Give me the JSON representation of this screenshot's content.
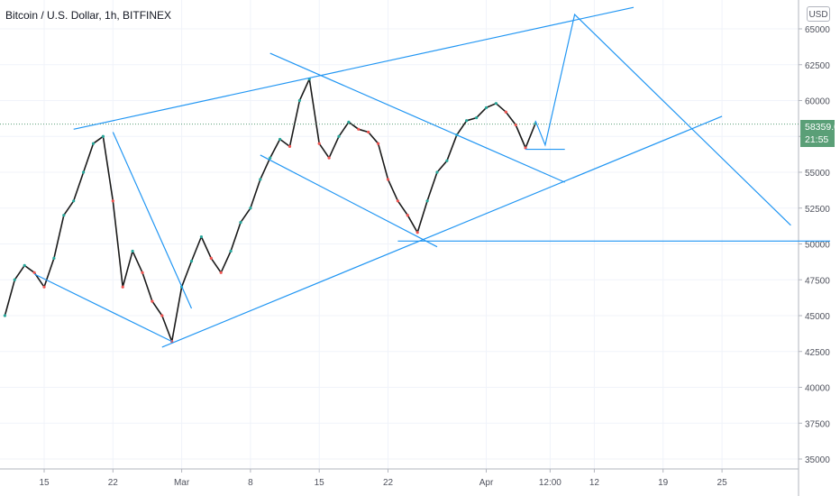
{
  "header": {
    "title": "Bitcoin / U.S. Dollar, 1h, BITFINEX",
    "currency": "USD"
  },
  "colors": {
    "up": "#26a69a",
    "down": "#ef5350",
    "candle": "#1a1a1a",
    "drawing": "#2196f3",
    "grid": "#f0f3fa",
    "price_tag": "#5a9f77"
  },
  "last_price": {
    "value": "58359.0",
    "countdown": "21:55"
  },
  "chart_data": {
    "type": "line",
    "title": "Bitcoin / U.S. Dollar, 1h, BITFINEX",
    "xlabel": "",
    "ylabel": "",
    "ylim": [
      34000,
      66500
    ],
    "y_ticks": [
      35000,
      37500,
      40000,
      42500,
      45000,
      47500,
      50000,
      52500,
      55000,
      57500,
      60000,
      62500,
      65000
    ],
    "y_tick_labels": [
      "35000",
      "37500",
      "40000",
      "42500",
      "45000",
      "47500",
      "50000",
      "52500",
      "55000",
      "57500",
      "60000",
      "62500",
      "65000"
    ],
    "x_ticks": [
      {
        "label": "15",
        "date": "2021-02-15"
      },
      {
        "label": "22",
        "date": "2021-02-22"
      },
      {
        "label": "Mar",
        "date": "2021-03-01"
      },
      {
        "label": "8",
        "date": "2021-03-08"
      },
      {
        "label": "15",
        "date": "2021-03-15"
      },
      {
        "label": "22",
        "date": "2021-03-22"
      },
      {
        "label": "Apr",
        "date": "2021-04-01"
      },
      {
        "label": "12:00",
        "date": "2021-04-07T12:00"
      },
      {
        "label": "12",
        "date": "2021-04-12"
      },
      {
        "label": "19",
        "date": "2021-04-19"
      },
      {
        "label": "25",
        "date": "2021-04-25"
      }
    ],
    "grid": true,
    "price_series": {
      "name": "",
      "x": [
        "2021-02-11",
        "2021-02-12",
        "2021-02-13",
        "2021-02-14",
        "2021-02-15",
        "2021-02-16",
        "2021-02-17",
        "2021-02-18",
        "2021-02-19",
        "2021-02-20",
        "2021-02-21",
        "2021-02-22",
        "2021-02-23",
        "2021-02-24",
        "2021-02-25",
        "2021-02-26",
        "2021-02-27",
        "2021-02-28",
        "2021-03-01",
        "2021-03-02",
        "2021-03-03",
        "2021-03-04",
        "2021-03-05",
        "2021-03-06",
        "2021-03-07",
        "2021-03-08",
        "2021-03-09",
        "2021-03-10",
        "2021-03-11",
        "2021-03-12",
        "2021-03-13",
        "2021-03-14",
        "2021-03-15",
        "2021-03-16",
        "2021-03-17",
        "2021-03-18",
        "2021-03-19",
        "2021-03-20",
        "2021-03-21",
        "2021-03-22",
        "2021-03-23",
        "2021-03-24",
        "2021-03-25",
        "2021-03-26",
        "2021-03-27",
        "2021-03-28",
        "2021-03-29",
        "2021-03-30",
        "2021-03-31",
        "2021-04-01",
        "2021-04-02",
        "2021-04-03",
        "2021-04-04",
        "2021-04-05",
        "2021-04-06"
      ],
      "y": [
        45000,
        47500,
        48500,
        48000,
        47000,
        49000,
        52000,
        53000,
        55000,
        57000,
        57500,
        53000,
        47000,
        49500,
        48000,
        46000,
        45000,
        43200,
        47000,
        48800,
        50500,
        49000,
        48000,
        49500,
        51500,
        52500,
        54500,
        56000,
        57300,
        56800,
        60000,
        61500,
        57000,
        56000,
        57500,
        58500,
        58000,
        57800,
        57000,
        54500,
        53000,
        52000,
        50800,
        53000,
        55000,
        55800,
        57600,
        58600,
        58800,
        59500,
        59800,
        59200,
        58300,
        56700,
        58400
      ]
    },
    "drawings": [
      {
        "name": "upper-channel-line",
        "from": [
          "2021-02-18",
          58000
        ],
        "to": [
          "2021-04-16",
          66500
        ]
      },
      {
        "name": "lower-channel-line",
        "from": [
          "2021-02-27",
          42800
        ],
        "to": [
          "2021-04-25",
          58900
        ]
      },
      {
        "name": "horizontal-support-line",
        "from": [
          "2021-03-23",
          50200
        ],
        "to": [
          "2021-05-06",
          50200
        ]
      },
      {
        "name": "descending-trend-line-1",
        "from": [
          "2021-02-14",
          47900
        ],
        "to": [
          "2021-02-28",
          43200
        ]
      },
      {
        "name": "descending-trend-line-2",
        "from": [
          "2021-02-22",
          57800
        ],
        "to": [
          "2021-03-02",
          45500
        ]
      },
      {
        "name": "descending-trend-line-3",
        "from": [
          "2021-03-09",
          56200
        ],
        "to": [
          "2021-03-27",
          49800
        ]
      },
      {
        "name": "descending-trend-line-4",
        "from": [
          "2021-03-10",
          63300
        ],
        "to": [
          "2021-04-09",
          54300
        ]
      },
      {
        "name": "short-support-line",
        "from": [
          "2021-04-05",
          56600
        ],
        "to": [
          "2021-04-09",
          56600
        ]
      },
      {
        "name": "projection-path",
        "points": [
          [
            "2021-04-06",
            58600
          ],
          [
            "2021-04-07",
            56900
          ],
          [
            "2021-04-10",
            66000
          ],
          [
            "2021-05-02",
            51300
          ]
        ]
      }
    ]
  }
}
